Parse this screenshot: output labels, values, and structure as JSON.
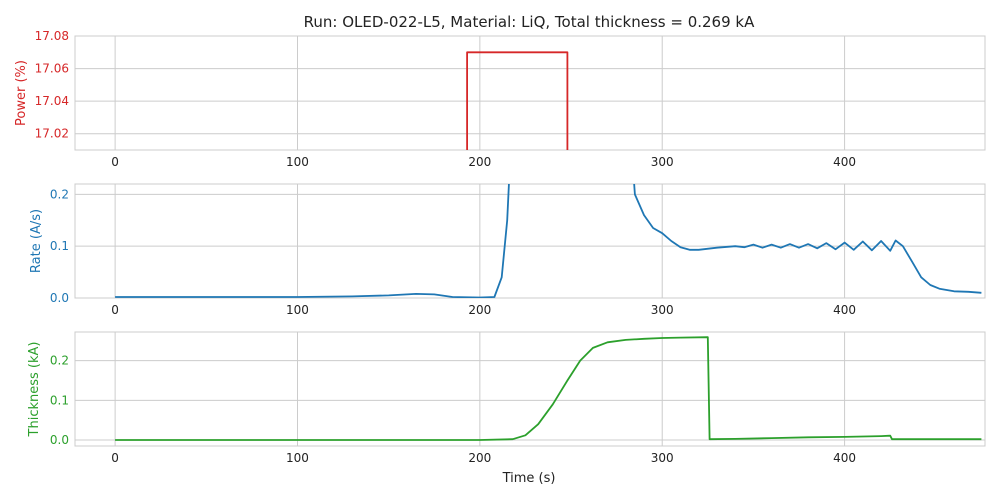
{
  "title": "Run: OLED-022-L5, Material: LiQ, Total thickness = 0.269 kA",
  "xlabel": "Time (s)",
  "colors": {
    "power": "#d62728",
    "rate": "#1f77b4",
    "thickness": "#2ca02c",
    "grid": "#cccccc",
    "text": "#222222"
  },
  "chart_data": [
    {
      "type": "line",
      "ylabel": "Power (%)",
      "xlim": [
        -22,
        477
      ],
      "ylim": [
        17.01,
        17.08
      ],
      "xticks": [
        0,
        100,
        200,
        300,
        400
      ],
      "yticks": [
        17.02,
        17.04,
        17.06,
        17.08
      ],
      "ytick_labels": [
        "17.02",
        "17.04",
        "17.06",
        "17.08"
      ],
      "grid": true,
      "series": [
        {
          "values": [
            [
              193,
              17.0
            ],
            [
              193,
              17.07
            ],
            [
              248,
              17.07
            ],
            [
              248,
              17.0
            ]
          ]
        }
      ]
    },
    {
      "type": "line",
      "ylabel": "Rate (A/s)",
      "xlim": [
        -22,
        477
      ],
      "ylim": [
        0,
        0.22
      ],
      "xticks": [
        0,
        100,
        200,
        300,
        400
      ],
      "yticks": [
        0.0,
        0.1,
        0.2
      ],
      "ytick_labels": [
        "0.0",
        "0.1",
        "0.2"
      ],
      "grid": true,
      "series": [
        {
          "values": [
            [
              0,
              0.002
            ],
            [
              50,
              0.002
            ],
            [
              100,
              0.002
            ],
            [
              130,
              0.003
            ],
            [
              150,
              0.005
            ],
            [
              165,
              0.008
            ],
            [
              175,
              0.007
            ],
            [
              185,
              0.002
            ],
            [
              200,
              0.001
            ],
            [
              208,
              0.002
            ],
            [
              212,
              0.04
            ],
            [
              215,
              0.15
            ],
            [
              217,
              0.3
            ],
            null,
            [
              283,
              0.3
            ],
            [
              285,
              0.2
            ],
            [
              290,
              0.16
            ],
            [
              295,
              0.135
            ],
            [
              300,
              0.125
            ],
            [
              305,
              0.11
            ],
            [
              310,
              0.098
            ],
            [
              315,
              0.093
            ],
            [
              320,
              0.093
            ],
            [
              330,
              0.097
            ],
            [
              340,
              0.1
            ],
            [
              345,
              0.098
            ],
            [
              350,
              0.103
            ],
            [
              355,
              0.097
            ],
            [
              360,
              0.103
            ],
            [
              365,
              0.097
            ],
            [
              370,
              0.104
            ],
            [
              375,
              0.097
            ],
            [
              380,
              0.104
            ],
            [
              385,
              0.096
            ],
            [
              390,
              0.106
            ],
            [
              395,
              0.094
            ],
            [
              400,
              0.107
            ],
            [
              405,
              0.093
            ],
            [
              410,
              0.109
            ],
            [
              415,
              0.092
            ],
            [
              420,
              0.11
            ],
            [
              425,
              0.091
            ],
            [
              428,
              0.111
            ],
            [
              432,
              0.1
            ],
            [
              437,
              0.07
            ],
            [
              442,
              0.04
            ],
            [
              447,
              0.025
            ],
            [
              452,
              0.018
            ],
            [
              460,
              0.013
            ],
            [
              468,
              0.012
            ],
            [
              475,
              0.01
            ]
          ]
        }
      ]
    },
    {
      "type": "line",
      "ylabel": "Thickness (kA)",
      "xlim": [
        -22,
        477
      ],
      "ylim": [
        -0.015,
        0.272
      ],
      "xticks": [
        0,
        100,
        200,
        300,
        400
      ],
      "xtick_labels": [
        "0",
        "100",
        "200",
        "300",
        "400"
      ],
      "yticks": [
        0.0,
        0.1,
        0.2
      ],
      "ytick_labels": [
        "0.0",
        "0.1",
        "0.2"
      ],
      "grid": true,
      "series": [
        {
          "values": [
            [
              0,
              0.0
            ],
            [
              100,
              0.0
            ],
            [
              200,
              0.0
            ],
            [
              218,
              0.002
            ],
            [
              225,
              0.012
            ],
            [
              232,
              0.04
            ],
            [
              240,
              0.09
            ],
            [
              248,
              0.15
            ],
            [
              255,
              0.2
            ],
            [
              262,
              0.232
            ],
            [
              270,
              0.246
            ],
            [
              280,
              0.252
            ],
            [
              290,
              0.255
            ],
            [
              300,
              0.257
            ],
            [
              310,
              0.258
            ],
            [
              325,
              0.259
            ],
            [
              326,
              0.002
            ],
            [
              340,
              0.003
            ],
            [
              360,
              0.005
            ],
            [
              380,
              0.007
            ],
            [
              400,
              0.008
            ],
            [
              410,
              0.009
            ],
            [
              420,
              0.01
            ],
            [
              425,
              0.011
            ],
            [
              426,
              0.002
            ],
            [
              440,
              0.002
            ],
            [
              475,
              0.002
            ]
          ]
        }
      ]
    }
  ]
}
